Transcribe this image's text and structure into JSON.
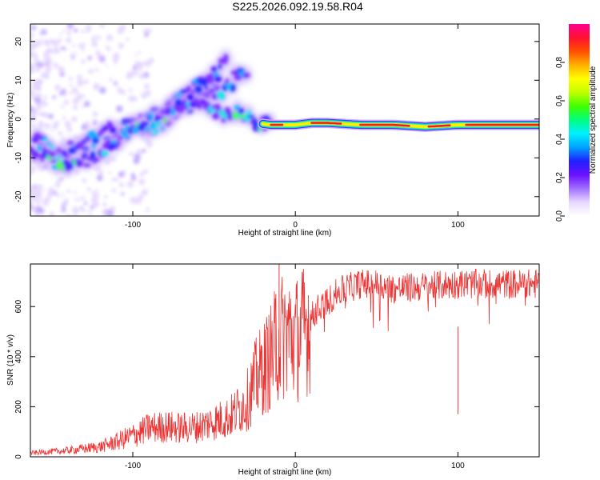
{
  "title": "S225.2026.092.19.58.R04",
  "colors": {
    "snr_line": "#ee3333",
    "frame": "#000000",
    "background": "#ffffff"
  },
  "chart_data": [
    {
      "type": "heatmap",
      "xlabel": "Height of straight line (km)",
      "ylabel": "Frequency (Hz)",
      "xlim": [
        -163,
        150
      ],
      "ylim": [
        -25,
        24.5
      ],
      "xticks": [
        -100,
        0,
        100
      ],
      "yticks": [
        -20,
        -10,
        0,
        10,
        20
      ],
      "grid": false,
      "colorbar": {
        "label": "Normalized spectral amplitude",
        "range": [
          0,
          1
        ],
        "ticks": [
          0.0,
          0.2,
          0.4,
          0.6,
          0.8
        ],
        "colormap": [
          "#ffffff",
          "#e8d8ff",
          "#a070ff",
          "#6a10ff",
          "#2020ff",
          "#00a0ff",
          "#00f0ff",
          "#00ff80",
          "#40ff00",
          "#c0ff00",
          "#ffff00",
          "#ffb000",
          "#ff5000",
          "#ff1030",
          "#ff0090"
        ]
      },
      "ridge": {
        "x": [
          -163,
          -155,
          -145,
          -135,
          -125,
          -115,
          -105,
          -95,
          -85,
          -75,
          -65,
          -55,
          -45,
          -35,
          -25,
          -15,
          -5,
          0,
          10,
          20,
          40,
          60,
          80,
          100,
          120,
          150
        ],
        "y": [
          -8.5,
          -9,
          -12,
          -11.5,
          -10,
          -7,
          -4,
          -2,
          0,
          2,
          5,
          4,
          1,
          2.5,
          -1,
          -1.5,
          -1.5,
          -1.5,
          -1,
          -1,
          -1.5,
          -1.5,
          -2,
          -1.5,
          -1.5,
          -1.5
        ]
      },
      "branches": [
        {
          "x": [
            -160,
            -150,
            -140,
            -130,
            -120,
            -110,
            -100,
            -90,
            -80,
            -70
          ],
          "y": [
            -6,
            -8,
            -8,
            -7,
            -4,
            -3,
            -2,
            0,
            2,
            5
          ]
        },
        {
          "x": [
            -95,
            -85,
            -75,
            -65,
            -55,
            -45,
            -38,
            -30
          ],
          "y": [
            -3,
            -1,
            1,
            4,
            8,
            7,
            10,
            11
          ]
        },
        {
          "x": [
            -80,
            -70,
            -60,
            -50,
            -42
          ],
          "y": [
            1,
            5,
            8,
            11,
            15
          ]
        }
      ]
    },
    {
      "type": "line",
      "xlabel": "Height of straight line (km)",
      "ylabel": "SNR (10 * v/v)",
      "xlim": [
        -163,
        150
      ],
      "ylim": [
        0,
        770
      ],
      "xticks": [
        -100,
        0,
        100
      ],
      "yticks": [
        0,
        200,
        400,
        600
      ],
      "grid": false,
      "series": [
        {
          "name": "SNR",
          "x": [
            -163,
            -140,
            -120,
            -110,
            -100,
            -90,
            -80,
            -70,
            -60,
            -50,
            -40,
            -30,
            -25,
            -20,
            -15,
            -10,
            -5,
            0,
            5,
            10,
            15,
            20,
            25,
            30,
            35,
            40,
            50,
            60,
            80,
            100,
            120,
            150
          ],
          "y": [
            15,
            25,
            40,
            60,
            85,
            115,
            120,
            115,
            120,
            140,
            160,
            220,
            300,
            350,
            400,
            470,
            500,
            470,
            500,
            560,
            600,
            620,
            650,
            670,
            680,
            690,
            690,
            670,
            680,
            690,
            690,
            690
          ]
        }
      ],
      "spikes": [
        {
          "x": -10,
          "y": 770
        },
        {
          "x": -12,
          "y": 650
        },
        {
          "x": 100,
          "y": 520
        }
      ]
    }
  ]
}
